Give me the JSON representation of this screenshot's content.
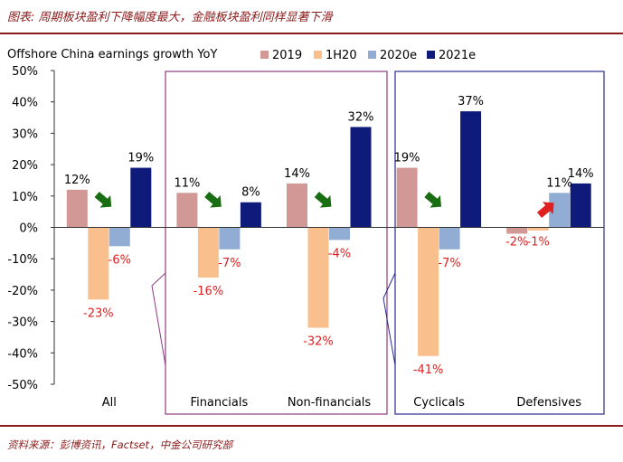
{
  "header": {
    "title": "图表: 周期板块盈利下降幅度最大，金融板块盈利同样显著下滑"
  },
  "footer": {
    "source": "资料来源：彭博资讯，Factset，中金公司研究部"
  },
  "chart_data": {
    "type": "bar",
    "title": "Offshore China earnings growth YoY",
    "xlabel": "",
    "ylabel": "",
    "ylim": [
      -50,
      50
    ],
    "yticks": [
      "-50%",
      "-40%",
      "-30%",
      "-20%",
      "-10%",
      "0%",
      "10%",
      "20%",
      "30%",
      "40%",
      "50%"
    ],
    "categories": [
      "All",
      "Financials",
      "Non-financials",
      "Cyclicals",
      "Defensives"
    ],
    "series": [
      {
        "name": "2019",
        "color": "#d19896",
        "values": [
          12,
          11,
          14,
          19,
          -2
        ]
      },
      {
        "name": "1H20",
        "color": "#f9c08e",
        "values": [
          -23,
          -16,
          -32,
          -41,
          -1
        ]
      },
      {
        "name": "2020e",
        "color": "#92add3",
        "values": [
          -6,
          -7,
          -4,
          -7,
          11
        ]
      },
      {
        "name": "2021e",
        "color": "#0f1b7a",
        "values": [
          19,
          8,
          32,
          37,
          14
        ]
      }
    ],
    "data_labels": [
      [
        "12%",
        "-23%",
        "-6%",
        "19%"
      ],
      [
        "11%",
        "-16%",
        "-7%",
        "8%"
      ],
      [
        "14%",
        "-32%",
        "-4%",
        "32%"
      ],
      [
        "19%",
        "-41%",
        "-7%",
        "37%"
      ],
      [
        "-2%",
        "-1%",
        "11%",
        "14%"
      ]
    ],
    "annotations": {
      "arrows": [
        {
          "category": "All",
          "direction": "down",
          "color": "#1a6e12"
        },
        {
          "category": "Financials",
          "direction": "down",
          "color": "#1a6e12"
        },
        {
          "category": "Non-financials",
          "direction": "down",
          "color": "#1a6e12"
        },
        {
          "category": "Cyclicals",
          "direction": "down",
          "color": "#1a6e12"
        },
        {
          "category": "Defensives",
          "direction": "up",
          "color": "#e02020"
        }
      ],
      "boxes": [
        {
          "categories": [
            "Financials",
            "Non-financials"
          ],
          "color": "#8e3b7f"
        },
        {
          "categories": [
            "Cyclicals",
            "Defensives"
          ],
          "color": "#2a2a8f"
        }
      ]
    }
  }
}
